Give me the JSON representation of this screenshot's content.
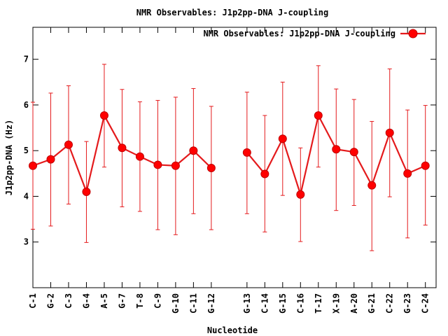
{
  "chart_data": {
    "type": "line",
    "title": "NMR Observables: J1p2pp-DNA J-coupling",
    "xlabel": "Nucleotide",
    "ylabel": "J1p2pp-DNA (Hz)",
    "ylim": [
      2,
      7.7
    ],
    "yticks": [
      3,
      4,
      5,
      6,
      7
    ],
    "legend": {
      "label": "NMR Observables: J1p2pp-DNA J-coupling",
      "position": "top-right"
    },
    "colors": {
      "line": "#e41a1c",
      "marker": "#ff0000"
    },
    "xlim": [
      0,
      22.6
    ],
    "gap_after_index": 11,
    "categories": [
      "C-1",
      "G-2",
      "C-3",
      "G-4",
      "A-5",
      "G-7",
      "T-8",
      "C-9",
      "G-10",
      "C-11",
      "G-12",
      "G-13",
      "C-14",
      "G-15",
      "C-16",
      "T-17",
      "X-19",
      "A-20",
      "G-21",
      "C-22",
      "G-23",
      "C-24"
    ],
    "x": [
      0,
      1,
      2,
      3,
      4,
      5,
      6,
      7,
      8,
      9,
      10,
      12,
      13,
      14,
      15,
      16,
      17,
      18,
      19,
      20,
      21,
      22
    ],
    "values": [
      4.67,
      4.81,
      5.13,
      4.1,
      5.77,
      5.06,
      4.87,
      4.69,
      4.67,
      5.0,
      4.62,
      4.96,
      4.49,
      5.26,
      4.04,
      5.77,
      5.03,
      4.97,
      4.24,
      5.39,
      4.5,
      4.67
    ],
    "error_low": [
      3.28,
      3.35,
      3.83,
      2.99,
      4.64,
      3.77,
      3.67,
      3.27,
      3.16,
      3.62,
      3.27,
      3.62,
      3.22,
      4.02,
      3.01,
      4.64,
      3.69,
      3.8,
      2.81,
      3.99,
      3.09,
      3.37
    ],
    "error_high": [
      6.06,
      6.26,
      6.42,
      5.2,
      6.89,
      6.34,
      6.07,
      6.1,
      6.17,
      6.36,
      5.97,
      6.28,
      5.77,
      6.5,
      5.06,
      6.86,
      6.35,
      6.12,
      5.64,
      6.79,
      5.89,
      5.99
    ]
  }
}
